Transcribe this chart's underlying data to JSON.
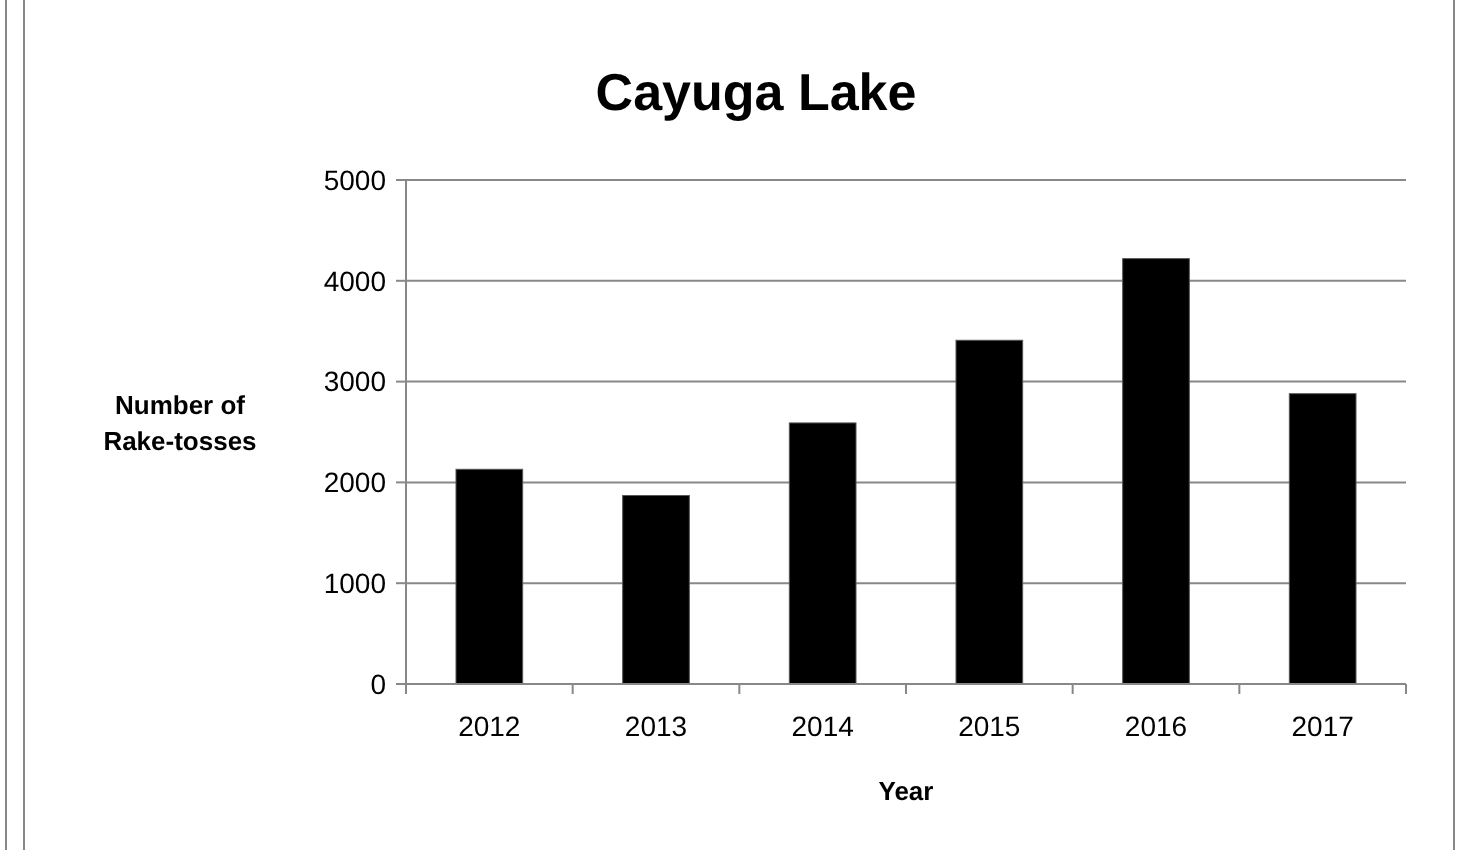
{
  "chart_data": {
    "type": "bar",
    "title": "Cayuga Lake",
    "xlabel": "Year",
    "ylabel": "Number of\nRake-tosses",
    "categories": [
      "2012",
      "2013",
      "2014",
      "2015",
      "2016",
      "2017"
    ],
    "values": [
      2130,
      1870,
      2590,
      3410,
      4220,
      2880
    ],
    "color": "#000000",
    "ylim": [
      0,
      5000
    ],
    "yticks": [
      0,
      1000,
      2000,
      3000,
      4000,
      5000
    ],
    "grid": "y"
  }
}
